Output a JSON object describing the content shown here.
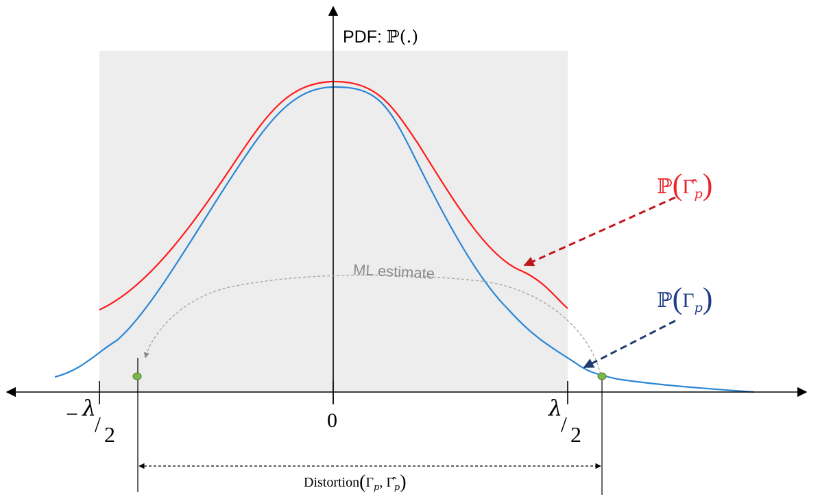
{
  "y_axis": {
    "label_prefix": "PDF: ",
    "label_math": "ℙ(.)"
  },
  "x_axis": {
    "left_minus": "−",
    "left_lambda": "λ",
    "left_slash": "/",
    "left_two": "2",
    "center_zero": "0",
    "right_lambda": "λ",
    "right_slash": "/",
    "right_two": "2"
  },
  "labels": {
    "p_hat": {
      "bb": "ℙ",
      "open": "(",
      "gamma": "Γ̂",
      "sub": "p",
      "close": ")",
      "color": "#e8262b"
    },
    "p": {
      "bb": "ℙ",
      "open": "(",
      "gamma": "Γ",
      "sub": "p",
      "close": ")",
      "color": "#1f3c88"
    },
    "ml_estimate": "ML estimate",
    "distortion": {
      "name": "Distortion",
      "open": "(",
      "gamma1": "Γ",
      "sub1": "p",
      "comma": ", ",
      "gamma2": "Γ̂",
      "sub2": "p",
      "close": ")"
    }
  },
  "colors": {
    "quantization_region": "#ededee",
    "red_curve": "#ff1a1a",
    "blue_curve": "#2a86d4",
    "red_arrow": "#c0161c",
    "navy_arrow": "#1f3c6e",
    "ml_arrow": "#a6a6a6",
    "point_fill": "#7bb84b",
    "point_stroke": "#4f7a2a"
  }
}
